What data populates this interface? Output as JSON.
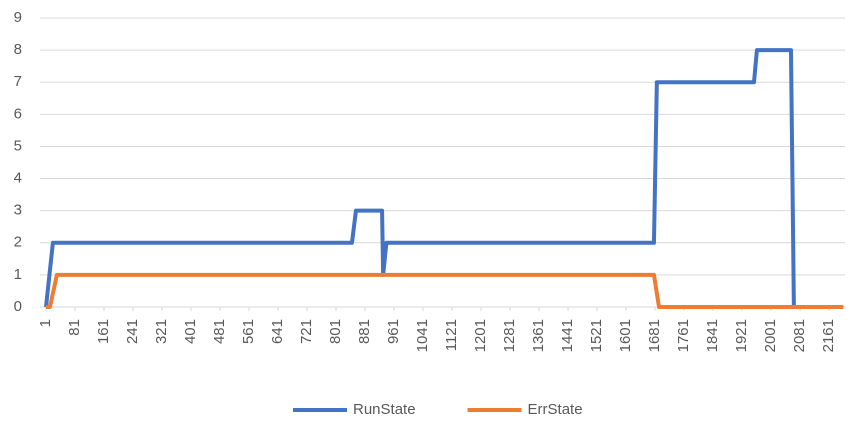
{
  "chart_data": {
    "type": "line",
    "series": [
      {
        "name": "RunState",
        "color": "#4472c4",
        "x": [
          1,
          20,
          845,
          856,
          928,
          931,
          940,
          1678,
          1686,
          1954,
          1962,
          2056,
          2064,
          2200
        ],
        "values": [
          0,
          2,
          2,
          3,
          3,
          1,
          2,
          2,
          7,
          7,
          8,
          8,
          0,
          0
        ]
      },
      {
        "name": "ErrState",
        "color": "#ed7d31",
        "x": [
          1,
          12,
          31,
          1678,
          1692,
          2200
        ],
        "values": [
          0,
          0,
          1,
          1,
          0,
          0
        ]
      }
    ],
    "xlim": [
      1,
      2205
    ],
    "xticks": [
      1,
      81,
      161,
      241,
      321,
      401,
      481,
      561,
      641,
      721,
      801,
      881,
      961,
      1041,
      1121,
      1201,
      1281,
      1361,
      1441,
      1521,
      1601,
      1681,
      1761,
      1841,
      1921,
      2001,
      2081,
      2161
    ],
    "ylim": [
      0,
      9
    ],
    "yticks": [
      0,
      1,
      2,
      3,
      4,
      5,
      6,
      7,
      8,
      9
    ],
    "grid": true,
    "legend": "bottom"
  }
}
